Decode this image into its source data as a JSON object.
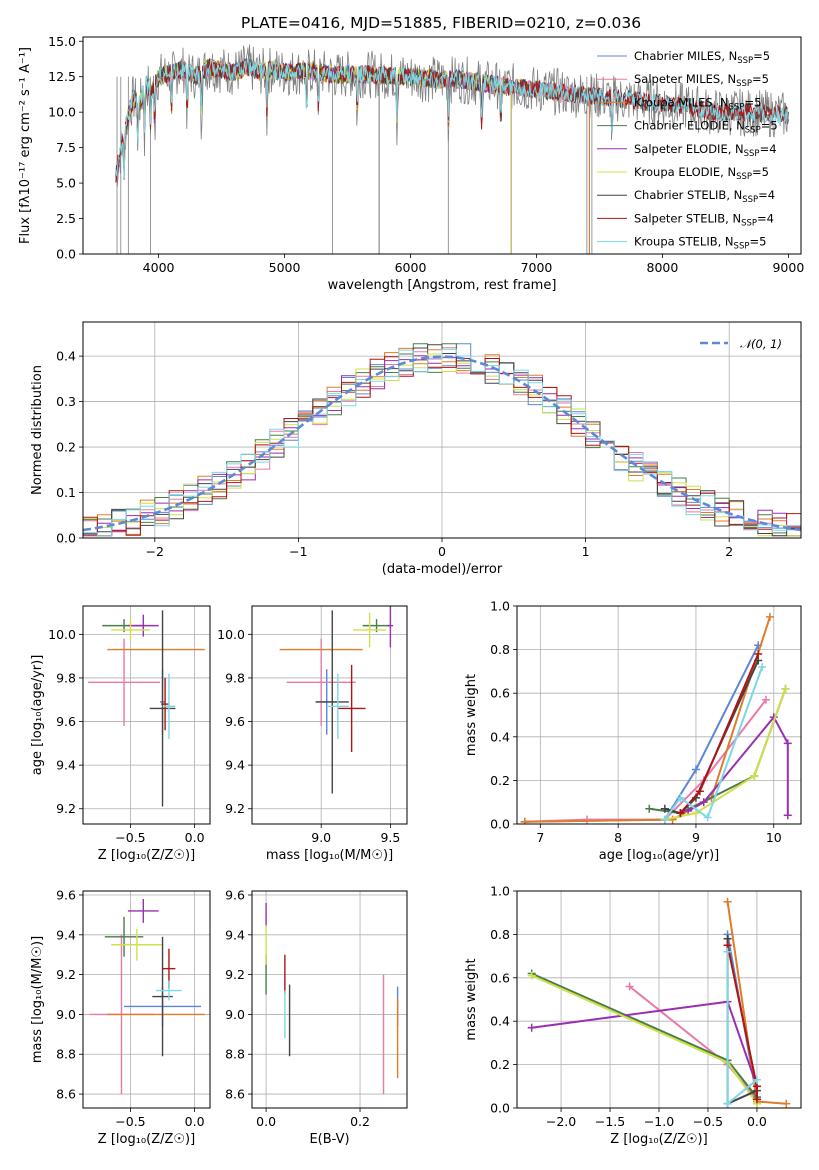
{
  "figure_title": "PLATE=0416, MJD=51885, FIBERID=0210, z=0.036",
  "colors": {
    "Chabrier MILES": "#5e86d6",
    "Salpeter MILES": "#e879a8",
    "Kroupa MILES": "#e07b28",
    "Chabrier ELODIE": "#4a7d4a",
    "Salpeter ELODIE": "#9a2fb0",
    "Kroupa ELODIE": "#cfe04a",
    "Chabrier STELIB": "#444444",
    "Salpeter STELIB": "#b01515",
    "Kroupa STELIB": "#7dd8e6",
    "data": "#808080",
    "normal": "#5b8ad6"
  },
  "chart_data": [
    {
      "id": "spectrum",
      "type": "line",
      "title": "PLATE=0416, MJD=51885, FIBERID=0210, z=0.036",
      "xlabel": "wavelength [Angstrom, rest frame]",
      "ylabel": "Flux [fλ10⁻¹⁷ erg cm⁻² s⁻¹ A⁻¹]",
      "xlim": [
        3400,
        9100
      ],
      "ylim": [
        0,
        15.3
      ],
      "xticks": [
        4000,
        5000,
        6000,
        7000,
        8000,
        9000
      ],
      "yticks": [
        0.0,
        2.5,
        5.0,
        7.5,
        10.0,
        12.5,
        15.0
      ],
      "legend_position": "top-right",
      "data_spectrum": {
        "x": [
          3660,
          3700,
          3750,
          3800,
          3850,
          3900,
          3950,
          4000,
          4100,
          4200,
          4300,
          4400,
          4500,
          4600,
          4700,
          4800,
          4900,
          5000,
          5200,
          5400,
          5600,
          5800,
          6000,
          6200,
          6400,
          6600,
          6800,
          7000,
          7200,
          7400,
          7600,
          7800,
          8000,
          8200,
          8400,
          8600,
          8800,
          9000
        ],
        "y": [
          7.5,
          8.5,
          9.5,
          11.0,
          10.5,
          12.0,
          11.5,
          12.5,
          12.8,
          13.0,
          12.5,
          13.2,
          13.0,
          12.8,
          13.2,
          12.8,
          13.0,
          12.8,
          12.9,
          12.6,
          12.7,
          12.6,
          12.5,
          12.3,
          12.3,
          12.0,
          11.8,
          11.6,
          11.4,
          11.2,
          11.0,
          10.8,
          10.6,
          10.4,
          10.0,
          10.0,
          9.9,
          9.8
        ]
      },
      "series": [
        {
          "name": "Chabrier MILES, N_SSP=5",
          "end": 7420
        },
        {
          "name": "Salpeter MILES, N_SSP=5",
          "end": 7420
        },
        {
          "name": "Kroupa MILES, N_SSP=5",
          "end": 7420
        },
        {
          "name": "Chabrier ELODIE, N_SSP=5",
          "end": 6800
        },
        {
          "name": "Salpeter ELODIE, N_SSP=4",
          "end": 6800
        },
        {
          "name": "Kroupa ELODIE, N_SSP=5",
          "end": 6800
        },
        {
          "name": "Chabrier STELIB, N_SSP=4",
          "end": 9000
        },
        {
          "name": "Salpeter STELIB, N_SSP=4",
          "end": 9000
        },
        {
          "name": "Kroupa STELIB, N_SSP=5",
          "end": 9000
        }
      ]
    },
    {
      "id": "residuals",
      "type": "histogram",
      "xlabel": "(data-model)/error",
      "ylabel": "Normed distribution",
      "xlim": [
        -2.5,
        2.5
      ],
      "ylim": [
        0,
        0.475
      ],
      "xticks": [
        -2,
        -1,
        0,
        1,
        2
      ],
      "yticks": [
        0.0,
        0.1,
        0.2,
        0.3,
        0.4
      ],
      "grid": true,
      "bin_edges": [
        -2.5,
        -2.4,
        -2.3,
        -2.2,
        -2.1,
        -2.0,
        -1.9,
        -1.8,
        -1.7,
        -1.6,
        -1.5,
        -1.4,
        -1.3,
        -1.2,
        -1.1,
        -1.0,
        -0.9,
        -0.8,
        -0.7,
        -0.6,
        -0.5,
        -0.4,
        -0.3,
        -0.2,
        -0.1,
        0.0,
        0.1,
        0.2,
        0.3,
        0.4,
        0.5,
        0.6,
        0.7,
        0.8,
        0.9,
        1.0,
        1.1,
        1.2,
        1.3,
        1.4,
        1.5,
        1.6,
        1.7,
        1.8,
        1.9,
        2.0,
        2.1,
        2.2,
        2.3,
        2.4,
        2.5
      ],
      "reference_curve": {
        "name": "𝒩(0, 1)",
        "mean": 0,
        "sigma": 1
      },
      "legend_position": "top-right"
    },
    {
      "id": "age-vs-Z",
      "type": "errorbar",
      "xlabel": "Z [log₁₀(Z/Z☉)]",
      "ylabel": "age  [log₁₀(age/yr)]",
      "xlim": [
        -0.87,
        0.12
      ],
      "ylim": [
        9.13,
        10.13
      ],
      "xticks": [
        -0.5,
        0.0
      ],
      "yticks": [
        9.2,
        9.4,
        9.6,
        9.8,
        10.0
      ],
      "grid": true,
      "points": [
        {
          "model": "Chabrier MILES",
          "x": -0.25,
          "y": 9.69,
          "xerr": 0.02,
          "yerr": 0.15
        },
        {
          "model": "Salpeter MILES",
          "x": -0.55,
          "y": 9.78,
          "xerr": 0.28,
          "yerr": 0.2
        },
        {
          "model": "Kroupa MILES",
          "x": -0.3,
          "y": 9.93,
          "xerr": 0.38,
          "yerr": 0.0
        },
        {
          "model": "Chabrier ELODIE",
          "x": -0.55,
          "y": 10.04,
          "xerr": 0.17,
          "yerr": 0.03
        },
        {
          "model": "Salpeter ELODIE",
          "x": -0.4,
          "y": 10.04,
          "xerr": 0.12,
          "yerr": 0.05
        },
        {
          "model": "Kroupa ELODIE",
          "x": -0.5,
          "y": 10.02,
          "xerr": 0.15,
          "yerr": 0.05
        },
        {
          "model": "Chabrier STELIB",
          "x": -0.25,
          "y": 9.66,
          "xerr": 0.1,
          "yerr": 0.45
        },
        {
          "model": "Salpeter STELIB",
          "x": -0.23,
          "y": 9.68,
          "xerr": 0.03,
          "yerr": 0.12
        },
        {
          "model": "Kroupa STELIB",
          "x": -0.2,
          "y": 9.67,
          "xerr": 0.05,
          "yerr": 0.15
        }
      ]
    },
    {
      "id": "age-vs-mass",
      "type": "errorbar",
      "xlabel": "mass [log₁₀(M/M☉)]",
      "ylabel": "",
      "xlim": [
        8.5,
        9.62
      ],
      "ylim": [
        9.13,
        10.13
      ],
      "xticks": [
        9.0,
        9.5
      ],
      "yticks": [
        9.2,
        9.4,
        9.6,
        9.8,
        10.0
      ],
      "grid": true,
      "points": [
        {
          "model": "Chabrier MILES",
          "x": 9.04,
          "y": 9.69,
          "xerr": 0.08,
          "yerr": 0.15
        },
        {
          "model": "Salpeter MILES",
          "x": 9.0,
          "y": 9.78,
          "xerr": 0.25,
          "yerr": 0.2
        },
        {
          "model": "Kroupa MILES",
          "x": 9.0,
          "y": 9.93,
          "xerr": 0.3,
          "yerr": 0.0
        },
        {
          "model": "Chabrier ELODIE",
          "x": 9.4,
          "y": 10.04,
          "xerr": 0.1,
          "yerr": 0.03
        },
        {
          "model": "Salpeter ELODIE",
          "x": 9.5,
          "y": 10.04,
          "xerr": 0.02,
          "yerr": 0.1
        },
        {
          "model": "Kroupa ELODIE",
          "x": 9.35,
          "y": 10.02,
          "xerr": 0.12,
          "yerr": 0.08
        },
        {
          "model": "Chabrier STELIB",
          "x": 9.08,
          "y": 9.69,
          "xerr": 0.12,
          "yerr": 0.42
        },
        {
          "model": "Salpeter STELIB",
          "x": 9.22,
          "y": 9.66,
          "xerr": 0.1,
          "yerr": 0.2
        },
        {
          "model": "Kroupa STELIB",
          "x": 9.12,
          "y": 9.67,
          "xerr": 0.08,
          "yerr": 0.15
        }
      ]
    },
    {
      "id": "weight-vs-age",
      "type": "line",
      "xlabel": "age  [log₁₀(age/yr)]",
      "ylabel": "mass weight",
      "xlim": [
        6.7,
        10.35
      ],
      "ylim": [
        0,
        1.0
      ],
      "xticks": [
        7,
        8,
        9,
        10
      ],
      "yticks": [
        0.0,
        0.2,
        0.4,
        0.6,
        0.8,
        1.0
      ],
      "grid": true,
      "series": [
        {
          "model": "Chabrier MILES",
          "x": [
            6.8,
            8.6,
            9.0,
            9.8
          ],
          "y": [
            0.01,
            0.02,
            0.25,
            0.82
          ]
        },
        {
          "model": "Salpeter MILES",
          "x": [
            6.8,
            7.6,
            8.6,
            9.1,
            9.9
          ],
          "y": [
            0.01,
            0.02,
            0.02,
            0.2,
            0.57
          ]
        },
        {
          "model": "Kroupa MILES",
          "x": [
            6.8,
            8.7,
            9.2,
            9.95
          ],
          "y": [
            0.01,
            0.02,
            0.12,
            0.95
          ]
        },
        {
          "model": "Chabrier ELODIE",
          "x": [
            8.4,
            8.8,
            9.75,
            10.15
          ],
          "y": [
            0.07,
            0.05,
            0.22,
            0.62
          ]
        },
        {
          "model": "Salpeter ELODIE",
          "x": [
            8.9,
            9.1,
            10.0,
            10.18,
            10.18
          ],
          "y": [
            0.06,
            0.1,
            0.49,
            0.37,
            0.04
          ]
        },
        {
          "model": "Kroupa ELODIE",
          "x": [
            8.6,
            9.0,
            9.75,
            10.15
          ],
          "y": [
            0.02,
            0.05,
            0.22,
            0.62
          ]
        },
        {
          "model": "Chabrier STELIB",
          "x": [
            8.6,
            8.8,
            9.0,
            9.8
          ],
          "y": [
            0.07,
            0.05,
            0.12,
            0.75
          ]
        },
        {
          "model": "Salpeter STELIB",
          "x": [
            8.8,
            9.05,
            9.8
          ],
          "y": [
            0.05,
            0.15,
            0.78
          ]
        },
        {
          "model": "Kroupa STELIB",
          "x": [
            8.6,
            8.8,
            9.15,
            9.85
          ],
          "y": [
            0.02,
            0.12,
            0.03,
            0.72
          ]
        }
      ]
    },
    {
      "id": "mass-vs-Z",
      "type": "errorbar",
      "xlabel": "Z [log₁₀(Z/Z☉)]",
      "ylabel": "mass [log₁₀(M/M☉)]",
      "xlim": [
        -0.87,
        0.12
      ],
      "ylim": [
        8.53,
        9.62
      ],
      "xticks": [
        -0.5,
        0.0
      ],
      "yticks": [
        8.6,
        8.8,
        9.0,
        9.2,
        9.4,
        9.6
      ],
      "grid": true,
      "points": [
        {
          "model": "Chabrier MILES",
          "x": -0.25,
          "y": 9.04,
          "xerr": 0.3,
          "yerr": 0.1
        },
        {
          "model": "Salpeter MILES",
          "x": -0.57,
          "y": 9.0,
          "xerr": 0.25,
          "yerr": 0.4
        },
        {
          "model": "Kroupa MILES",
          "x": -0.3,
          "y": 9.0,
          "xerr": 0.38,
          "yerr": 0.0
        },
        {
          "model": "Chabrier ELODIE",
          "x": -0.55,
          "y": 9.39,
          "xerr": 0.15,
          "yerr": 0.1
        },
        {
          "model": "Salpeter ELODIE",
          "x": -0.4,
          "y": 9.52,
          "xerr": 0.12,
          "yerr": 0.06
        },
        {
          "model": "Kroupa ELODIE",
          "x": -0.45,
          "y": 9.35,
          "xerr": 0.2,
          "yerr": 0.08
        },
        {
          "model": "Chabrier STELIB",
          "x": -0.25,
          "y": 9.09,
          "xerr": 0.08,
          "yerr": 0.3
        },
        {
          "model": "Salpeter STELIB",
          "x": -0.2,
          "y": 9.23,
          "xerr": 0.05,
          "yerr": 0.1
        },
        {
          "model": "Kroupa STELIB",
          "x": -0.2,
          "y": 9.12,
          "xerr": 0.1,
          "yerr": 0.05
        }
      ]
    },
    {
      "id": "mass-vs-ebv",
      "type": "errorbar",
      "xlabel": "E(B-V)",
      "ylabel": "",
      "xlim": [
        -0.03,
        0.3
      ],
      "ylim": [
        8.53,
        9.62
      ],
      "xticks": [
        0.0,
        0.2
      ],
      "yticks": [
        8.6,
        8.8,
        9.0,
        9.2,
        9.4,
        9.6
      ],
      "grid": true,
      "points": [
        {
          "model": "Chabrier MILES",
          "x": 0.28,
          "y": 9.04,
          "xerr": 0,
          "yerr": 0.1
        },
        {
          "model": "Salpeter MILES",
          "x": 0.25,
          "y": 8.9,
          "xerr": 0,
          "yerr": 0.3
        },
        {
          "model": "Kroupa MILES",
          "x": 0.28,
          "y": 8.88,
          "xerr": 0,
          "yerr": 0.2
        },
        {
          "model": "Chabrier ELODIE",
          "x": 0.0,
          "y": 9.2,
          "xerr": 0,
          "yerr": 0.1
        },
        {
          "model": "Salpeter ELODIE",
          "x": 0.0,
          "y": 9.5,
          "xerr": 0,
          "yerr": 0.06
        },
        {
          "model": "Kroupa ELODIE",
          "x": 0.0,
          "y": 9.35,
          "xerr": 0,
          "yerr": 0.1
        },
        {
          "model": "Chabrier STELIB",
          "x": 0.05,
          "y": 8.97,
          "xerr": 0,
          "yerr": 0.18
        },
        {
          "model": "Salpeter STELIB",
          "x": 0.04,
          "y": 9.2,
          "xerr": 0,
          "yerr": 0.1
        },
        {
          "model": "Kroupa STELIB",
          "x": 0.04,
          "y": 9.0,
          "xerr": 0,
          "yerr": 0.12
        }
      ]
    },
    {
      "id": "weight-vs-Z",
      "type": "line",
      "xlabel": "Z [log₁₀(Z/Z☉)]",
      "ylabel": "mass weight",
      "xlim": [
        -2.45,
        0.45
      ],
      "ylim": [
        0,
        1.0
      ],
      "xticks": [
        -2.0,
        -1.5,
        -1.0,
        -0.5,
        0.0
      ],
      "yticks": [
        0.0,
        0.2,
        0.4,
        0.6,
        0.8,
        1.0
      ],
      "grid": true,
      "series": [
        {
          "model": "Chabrier MILES",
          "x": [
            -0.3,
            0.0,
            0.0
          ],
          "y": [
            0.8,
            0.05,
            0.02
          ]
        },
        {
          "model": "Salpeter MILES",
          "x": [
            -1.3,
            -0.3,
            0.0
          ],
          "y": [
            0.56,
            0.2,
            0.04
          ]
        },
        {
          "model": "Kroupa MILES",
          "x": [
            -0.3,
            0.0,
            0.3
          ],
          "y": [
            0.95,
            0.03,
            0.02
          ]
        },
        {
          "model": "Chabrier ELODIE",
          "x": [
            -2.3,
            -0.3,
            0.0
          ],
          "y": [
            0.62,
            0.22,
            0.05
          ]
        },
        {
          "model": "Salpeter ELODIE",
          "x": [
            -2.3,
            -0.3,
            0.0,
            0.0
          ],
          "y": [
            0.37,
            0.49,
            0.1,
            0.04
          ]
        },
        {
          "model": "Kroupa ELODIE",
          "x": [
            -2.3,
            -0.3,
            0.0
          ],
          "y": [
            0.61,
            0.21,
            0.02
          ]
        },
        {
          "model": "Chabrier STELIB",
          "x": [
            -0.3,
            -0.3,
            0.0
          ],
          "y": [
            0.78,
            0.02,
            0.08
          ]
        },
        {
          "model": "Salpeter STELIB",
          "x": [
            -0.3,
            0.0,
            0.0
          ],
          "y": [
            0.75,
            0.1,
            0.04
          ]
        },
        {
          "model": "Kroupa STELIB",
          "x": [
            -0.3,
            -0.3,
            0.0
          ],
          "y": [
            0.72,
            0.02,
            0.13
          ]
        }
      ]
    }
  ]
}
